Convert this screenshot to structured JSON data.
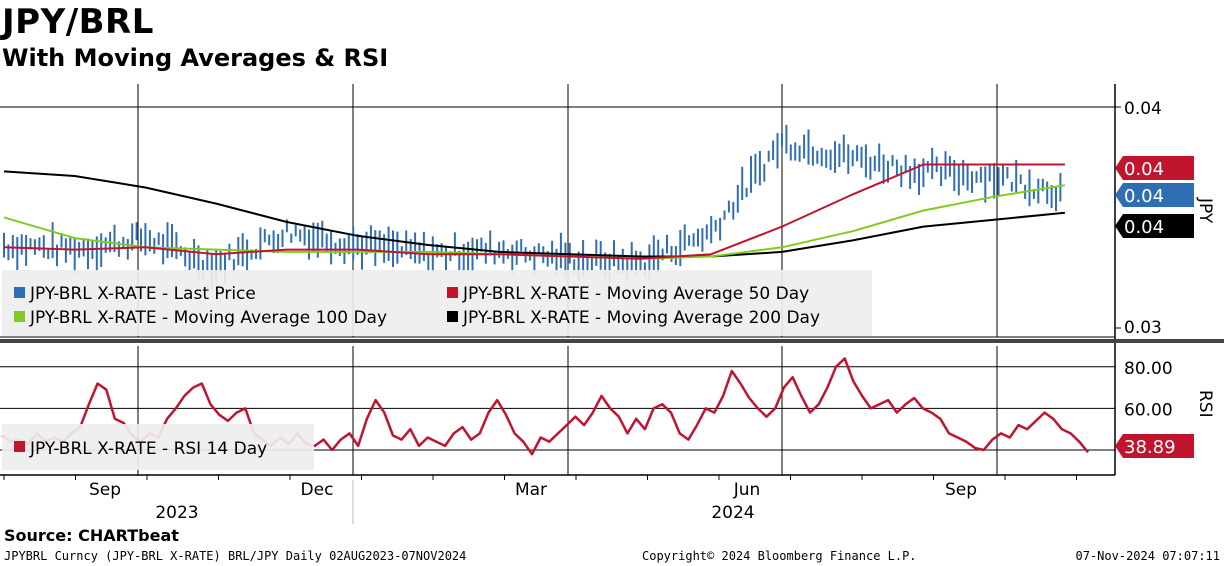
{
  "title": "JPY/BRL",
  "subtitle": "With Moving Averages & RSI",
  "footer": {
    "source": "Source: CHARTbeat",
    "ticker": "JPYBRL Curncy (JPY-BRL X-RATE) BRL/JPY  Daily 02AUG2023-07NOV2024",
    "copyright": "Copyright© 2024 Bloomberg Finance L.P.",
    "timestamp": "07-Nov-2024 07:07:11"
  },
  "colors": {
    "price": "#2f6eb5",
    "ma50": "#c0142f",
    "ma100": "#7fcc1f",
    "ma200": "#000000",
    "rsi": "#c0142f",
    "legend_bg": "#eeeeee"
  },
  "chart_data": [
    {
      "type": "line",
      "panel": "price",
      "y_axis_title": "JPY",
      "y_ticks": [
        "0.04",
        "0.03"
      ],
      "x_tick_labels": [
        "Sep",
        "Dec",
        "Mar",
        "Jun",
        "Sep"
      ],
      "x_year_labels": [
        "2023",
        "2024"
      ],
      "grid": true,
      "legend_placement": "bottom-left",
      "last_value_tags": [
        {
          "label": "0.04",
          "series": "Moving Average 50 Day"
        },
        {
          "label": "0.04",
          "series": "Last Price"
        },
        {
          "label": "0.04",
          "series": "Moving Average 200 Day"
        }
      ],
      "series": [
        {
          "name": "JPY-BRL X-RATE - Last Price",
          "style": "ohlc-bars",
          "x": [
            "2023-08",
            "2023-09",
            "2023-10",
            "2023-11",
            "2023-12",
            "2024-01",
            "2024-02",
            "2024-03",
            "2024-04",
            "2024-05",
            "2024-06",
            "2024-07",
            "2024-08",
            "2024-09",
            "2024-10",
            "2024-11"
          ],
          "values": [
            0.034,
            0.0338,
            0.0343,
            0.0331,
            0.0346,
            0.034,
            0.0336,
            0.0338,
            0.0334,
            0.0332,
            0.0346,
            0.0385,
            0.0378,
            0.0372,
            0.037,
            0.0363
          ]
        },
        {
          "name": "JPY-BRL X-RATE - Moving Average 50 Day",
          "x": [
            "2023-08",
            "2023-09",
            "2023-10",
            "2023-11",
            "2023-12",
            "2024-01",
            "2024-02",
            "2024-03",
            "2024-04",
            "2024-05",
            "2024-06",
            "2024-07",
            "2024-08",
            "2024-09",
            "2024-10",
            "2024-11"
          ],
          "values": [
            0.0339,
            0.0338,
            0.0339,
            0.0336,
            0.0338,
            0.0338,
            0.0336,
            0.0336,
            0.0335,
            0.0334,
            0.0336,
            0.0348,
            0.0362,
            0.0375,
            0.0375,
            0.0375
          ]
        },
        {
          "name": "JPY-BRL X-RATE - Moving Average 100 Day",
          "x": [
            "2023-08",
            "2023-09",
            "2023-10",
            "2023-11",
            "2023-12",
            "2024-01",
            "2024-02",
            "2024-03",
            "2024-04",
            "2024-05",
            "2024-06",
            "2024-07",
            "2024-08",
            "2024-09",
            "2024-10",
            "2024-11"
          ],
          "values": [
            0.0352,
            0.0343,
            0.0339,
            0.0338,
            0.0337,
            0.0337,
            0.0337,
            0.0336,
            0.0335,
            0.0334,
            0.0335,
            0.0339,
            0.0346,
            0.0355,
            0.0361,
            0.0366
          ]
        },
        {
          "name": "JPY-BRL X-RATE - Moving Average 200 Day",
          "x": [
            "2023-08",
            "2023-09",
            "2023-10",
            "2023-11",
            "2023-12",
            "2024-01",
            "2024-02",
            "2024-03",
            "2024-04",
            "2024-05",
            "2024-06",
            "2024-07",
            "2024-08",
            "2024-09",
            "2024-10",
            "2024-11"
          ],
          "values": [
            0.0372,
            0.037,
            0.0365,
            0.0358,
            0.035,
            0.0344,
            0.034,
            0.0337,
            0.0336,
            0.0335,
            0.0335,
            0.0337,
            0.0342,
            0.0348,
            0.0351,
            0.0354
          ]
        }
      ]
    },
    {
      "type": "line",
      "panel": "rsi",
      "y_axis_title": "RSI",
      "y_ticks": [
        "80.00",
        "60.00"
      ],
      "grid": true,
      "legend_placement": "bottom-left",
      "last_value_tags": [
        {
          "label": "38.89",
          "series": "RSI 14 Day"
        }
      ],
      "series": [
        {
          "name": "JPY-BRL X-RATE - RSI 14 Day",
          "values": [
            47,
            44,
            45,
            43,
            48,
            44,
            46,
            44,
            48,
            51,
            62,
            72,
            69,
            55,
            53,
            47,
            44,
            48,
            46,
            55,
            60,
            66,
            70,
            72,
            62,
            57,
            54,
            58,
            60,
            48,
            45,
            42,
            46,
            43,
            48,
            43,
            42,
            45,
            40,
            45,
            48,
            42,
            55,
            64,
            58,
            47,
            45,
            50,
            42,
            46,
            44,
            42,
            48,
            51,
            45,
            48,
            58,
            64,
            57,
            48,
            44,
            38,
            46,
            44,
            48,
            52,
            56,
            52,
            58,
            66,
            60,
            56,
            48,
            55,
            50,
            60,
            62,
            58,
            48,
            45,
            52,
            60,
            58,
            66,
            78,
            72,
            65,
            60,
            56,
            60,
            70,
            75,
            66,
            58,
            62,
            70,
            80,
            84,
            73,
            66,
            60,
            62,
            64,
            58,
            62,
            65,
            60,
            58,
            55,
            48,
            46,
            44,
            41,
            40,
            45,
            48,
            46,
            52,
            50,
            54,
            58,
            55,
            50,
            48,
            44,
            38.89
          ]
        }
      ]
    }
  ]
}
